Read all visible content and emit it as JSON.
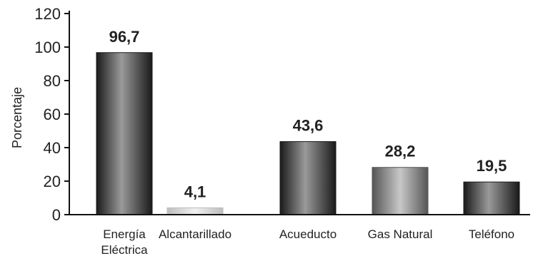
{
  "chart_data": {
    "type": "bar",
    "title": "",
    "xlabel": "",
    "ylabel": "Porcentaje",
    "ylim": [
      0,
      120
    ],
    "yticks": [
      0,
      20,
      40,
      60,
      80,
      100,
      120
    ],
    "grid": false,
    "categories": [
      [
        "Energía",
        "Eléctrica"
      ],
      [
        "Alcantarillado"
      ],
      [
        "Acueducto"
      ],
      [
        "Gas Natural"
      ],
      [
        "Teléfono"
      ]
    ],
    "values": [
      96.7,
      4.1,
      43.6,
      28.2,
      19.5
    ],
    "data_labels": [
      "96,7",
      "4,1",
      "43,6",
      "28,2",
      "19,5"
    ],
    "bar_styles": [
      "dark",
      "light",
      "dark",
      "medium",
      "dark"
    ]
  },
  "colors": {
    "dark_edge": "#1a1a1a",
    "dark_mid": "#9a9a9a",
    "light_edge": "#bdbdbd",
    "light_mid": "#f0f0f0",
    "medium_edge": "#555555",
    "medium_mid": "#c8c8c8",
    "axis": "#111111"
  }
}
